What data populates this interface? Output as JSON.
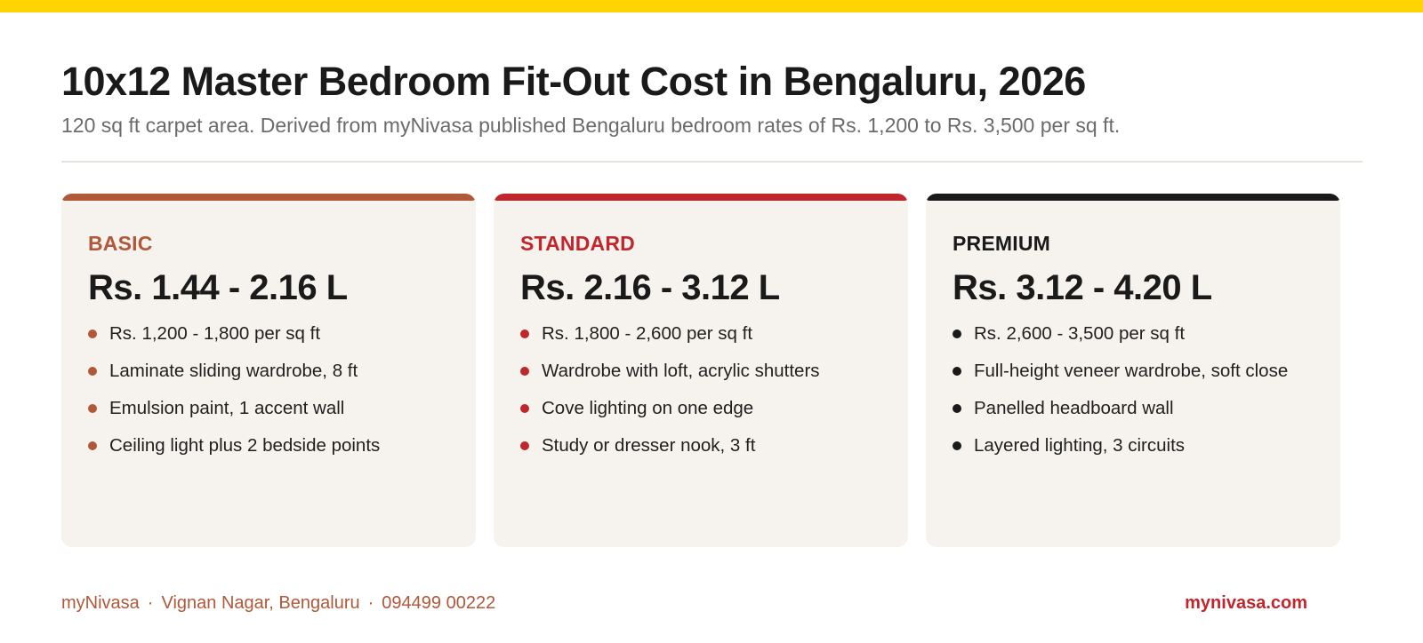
{
  "header": {
    "title": "10x12 Master Bedroom Fit-Out Cost in Bengaluru, 2026",
    "subtitle": "120 sq ft carpet area. Derived from myNivasa published Bengaluru bedroom rates of Rs. 1,200 to Rs. 3,500 per sq ft."
  },
  "colors": {
    "top_bar": "#FFD400",
    "basic": "#B0583A",
    "standard": "#C0272D",
    "premium": "#1a1a1a",
    "card_bg": "#f6f3ee"
  },
  "cards": [
    {
      "tier": "BASIC",
      "price": "Rs. 1.44 - 2.16 L",
      "items": [
        "Rs. 1,200 - 1,800 per sq ft",
        "Laminate sliding wardrobe, 8 ft",
        "Emulsion paint, 1 accent wall",
        "Ceiling light plus 2 bedside points"
      ]
    },
    {
      "tier": "STANDARD",
      "price": "Rs. 2.16 - 3.12 L",
      "items": [
        "Rs. 1,800 - 2,600 per sq ft",
        "Wardrobe with loft, acrylic shutters",
        "Cove lighting on one edge",
        "Study or dresser nook, 3 ft"
      ]
    },
    {
      "tier": "PREMIUM",
      "price": "Rs. 3.12 - 4.20 L",
      "items": [
        "Rs. 2,600 - 3,500 per sq ft",
        "Full-height veneer wardrobe, soft close",
        "Panelled headboard wall",
        "Layered lighting, 3 circuits"
      ]
    }
  ],
  "footer": {
    "brand": "myNivasa",
    "location": "Vignan Nagar, Bengaluru",
    "phone": "094499 00222",
    "separator": "·",
    "website": "mynivasa.com"
  }
}
